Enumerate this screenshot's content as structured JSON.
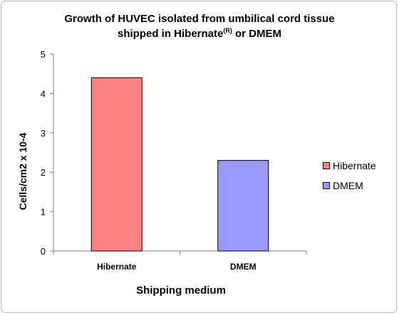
{
  "chart_data": {
    "type": "bar",
    "title_line1": "Growth of HUVEC isolated from umbilical cord tissue",
    "title_line2_pre": "shipped in Hibernate",
    "title_sup": "(R)",
    "title_line2_post": " or DMEM",
    "categories": [
      "Hibernate",
      "DMEM"
    ],
    "values": [
      4.4,
      2.3
    ],
    "colors": [
      "#ff8080",
      "#9999ff"
    ],
    "xlabel": "Shipping medium",
    "ylabel": "Cells/cm2 x 10-4",
    "ylim": [
      0,
      5
    ],
    "yticks": [
      "0",
      "1",
      "2",
      "3",
      "4",
      "5"
    ],
    "grid": false,
    "legend_position": "right",
    "legend": [
      {
        "label": "Hibernate",
        "color": "#ff8080"
      },
      {
        "label": "DMEM",
        "color": "#9999ff"
      }
    ]
  }
}
